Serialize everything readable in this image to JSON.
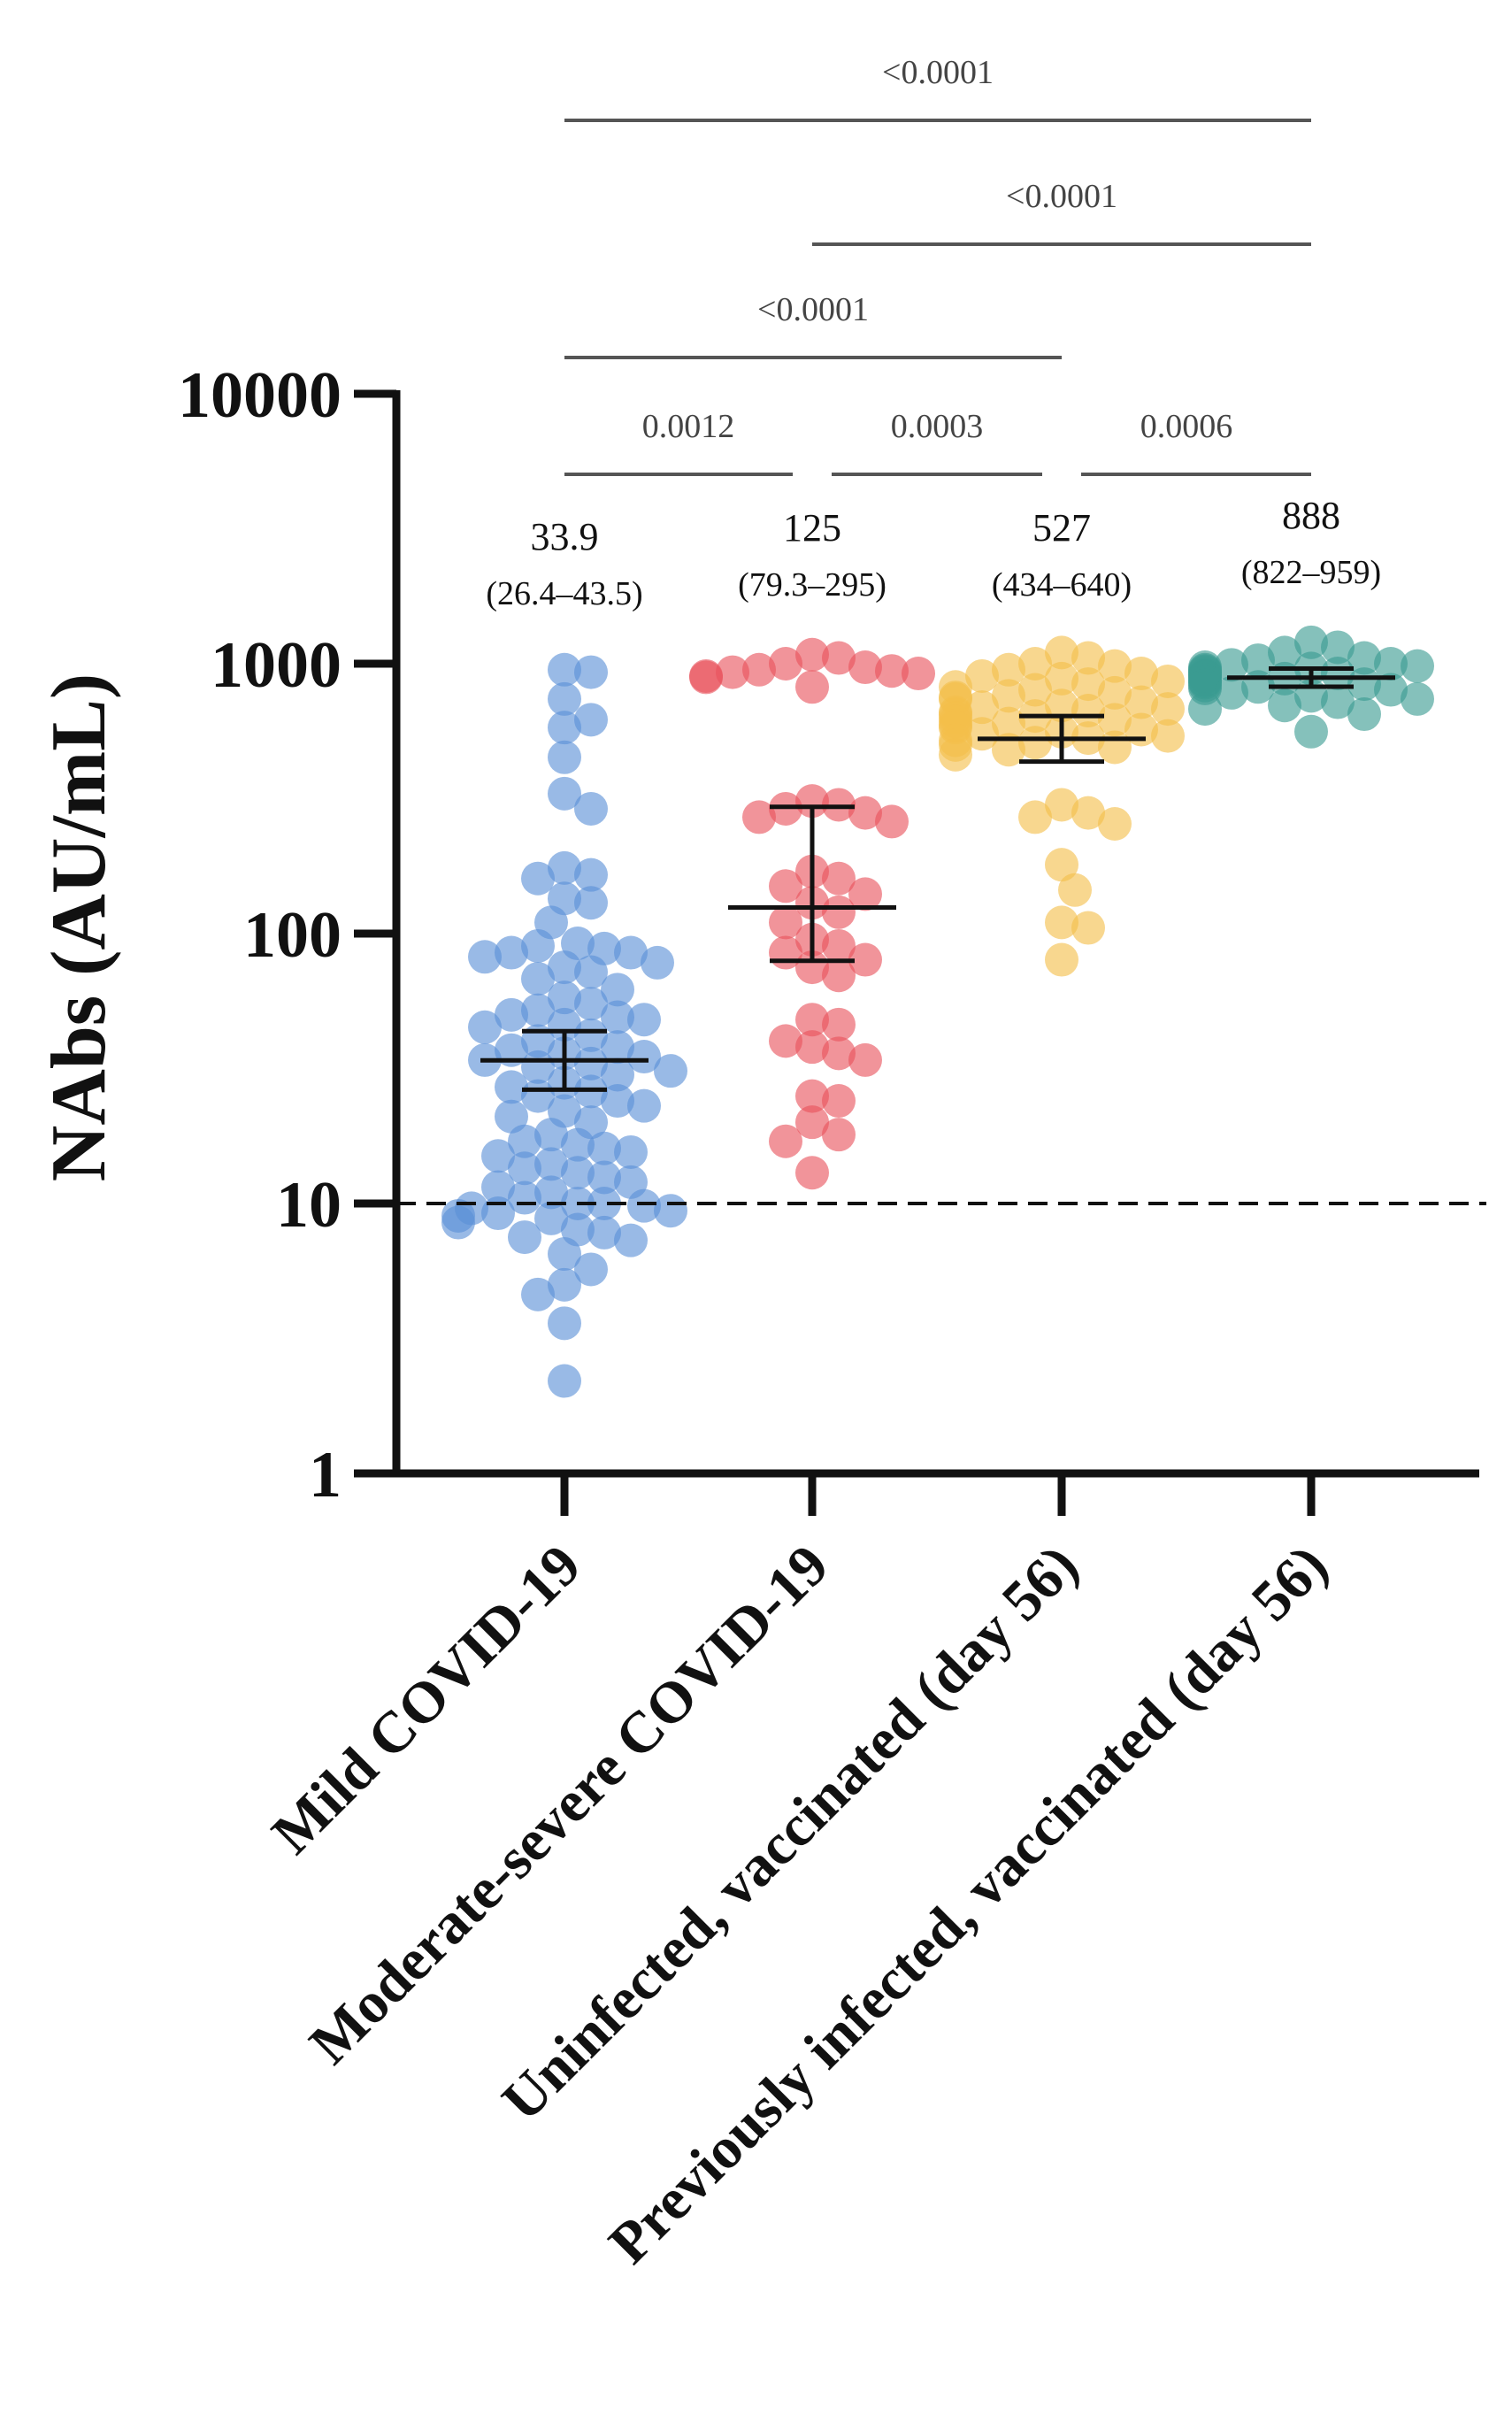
{
  "chart_data": {
    "type": "scatter",
    "ylabel": "NAbs (AU/mL)",
    "yscale": "log",
    "ylim": [
      1,
      10000
    ],
    "yticks": [
      {
        "value": 1,
        "label": "1"
      },
      {
        "value": 10,
        "label": "10"
      },
      {
        "value": 100,
        "label": "100"
      },
      {
        "value": 1000,
        "label": "1000"
      },
      {
        "value": 10000,
        "label": "10000"
      }
    ],
    "threshold": {
      "value": 10,
      "style": "dashed"
    },
    "groups": [
      {
        "name": "Mild COVID-19",
        "color": "#5b8fd6",
        "gmt": 33.9,
        "gmt_label": "33.9",
        "ci": [
          26.4,
          43.5
        ],
        "ci_label": "(26.4–43.5)",
        "values": [
          930,
          950,
          740,
          620,
          580,
          450,
          330,
          290,
          175,
          165,
          160,
          135,
          130,
          110,
          92,
          90,
          88,
          85,
          85,
          82,
          78,
          75,
          72,
          68,
          62,
          58,
          55,
          52,
          50,
          49,
          48,
          46,
          45,
          42,
          40,
          38,
          37,
          36,
          35,
          34,
          33,
          32,
          31,
          30,
          28,
          27,
          26,
          25,
          24,
          23,
          22,
          21,
          20,
          18,
          17,
          16.5,
          16,
          15.5,
          15,
          14,
          13.5,
          13,
          12.5,
          12,
          11.5,
          11,
          10.5,
          10,
          10,
          9.8,
          9.6,
          9.4,
          9.2,
          9,
          8.8,
          8.5,
          8,
          7.8,
          7.5,
          7.3,
          6.5,
          5.7,
          5,
          4.6,
          3.6,
          2.2
        ]
      },
      {
        "name": "Moderate-severe COVID-19",
        "color": "#e8535c",
        "gmt": 125,
        "gmt_label": "125",
        "ci": [
          79.3,
          295
        ],
        "ci_label": "(79.3–295)",
        "values": [
          1080,
          1050,
          1000,
          970,
          950,
          940,
          930,
          920,
          900,
          890,
          820,
          310,
          300,
          290,
          280,
          270,
          260,
          170,
          160,
          150,
          140,
          130,
          120,
          110,
          95,
          90,
          85,
          80,
          75,
          70,
          48,
          46,
          40,
          38,
          36,
          34,
          25,
          24,
          20,
          18,
          17,
          13
        ]
      },
      {
        "name": "Uninfected, vaccinated (day 56)",
        "color": "#f4bf4a",
        "gmt": 527,
        "gmt_label": "527",
        "ci": [
          434,
          640
        ],
        "ci_label": "(434–640)",
        "values": [
          1100,
          1050,
          1000,
          980,
          950,
          920,
          900,
          880,
          860,
          840,
          820,
          800,
          780,
          760,
          750,
          740,
          720,
          700,
          690,
          680,
          670,
          660,
          650,
          640,
          630,
          620,
          610,
          600,
          590,
          580,
          570,
          560,
          550,
          540,
          530,
          520,
          510,
          500,
          490,
          480,
          460,
          300,
          280,
          270,
          255,
          180,
          145,
          110,
          105,
          80
        ]
      },
      {
        "name": "Previously infected, vaccinated (day 56)",
        "color": "#3a9b92",
        "gmt": 888,
        "gmt_label": "888",
        "ci": [
          822,
          959
        ],
        "ci_label": "(822–959)",
        "values": [
          1200,
          1150,
          1100,
          1050,
          1030,
          1000,
          990,
          980,
          970,
          960,
          950,
          940,
          930,
          920,
          910,
          900,
          890,
          880,
          870,
          860,
          850,
          840,
          830,
          820,
          810,
          800,
          780,
          760,
          740,
          720,
          700,
          680,
          650,
          560
        ]
      }
    ],
    "comparisons": [
      {
        "from": 0,
        "to": 3,
        "label": "<0.0001"
      },
      {
        "from": 1,
        "to": 3,
        "label": "<0.0001"
      },
      {
        "from": 0,
        "to": 2,
        "label": "<0.0001"
      },
      {
        "from": 0,
        "to": 1,
        "label": "0.0012"
      },
      {
        "from": 1,
        "to": 2,
        "label": "0.0003"
      },
      {
        "from": 2,
        "to": 3,
        "label": "0.0006"
      }
    ]
  }
}
